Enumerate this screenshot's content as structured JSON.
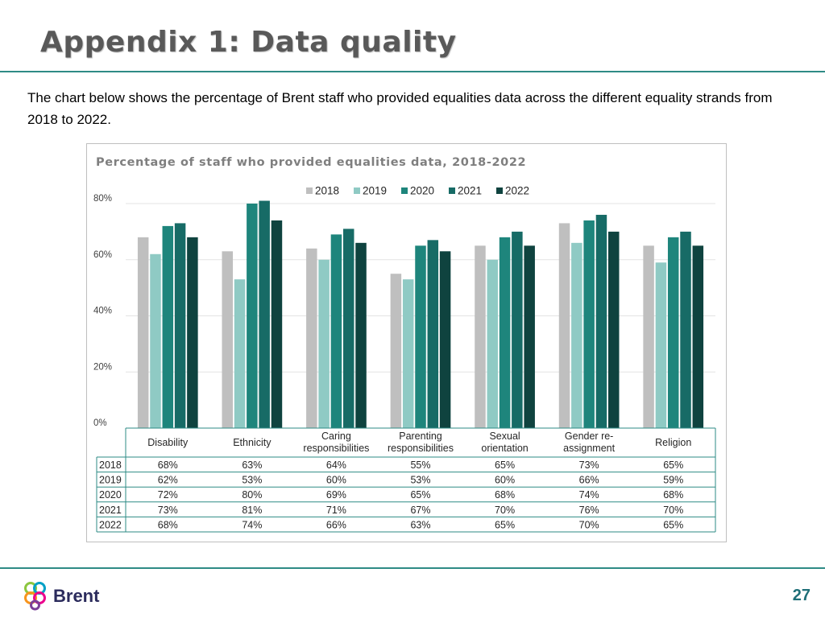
{
  "header": {
    "title": "Appendix 1: Data quality"
  },
  "intro_text": "The chart below shows the percentage of Brent staff who provided equalities data across the different equality strands from 2018 to 2022.",
  "colors": {
    "accent_rule": "#2e8b85",
    "series": [
      "#bfbfbf",
      "#8fcac4",
      "#1e857c",
      "#176b66",
      "#0f433f"
    ]
  },
  "chart_data": {
    "type": "bar",
    "title": "Percentage of staff who provided equalities data, 2018-2022",
    "categories": [
      "Disability",
      "Ethnicity",
      "Caring responsibilities",
      "Parenting responsibilities",
      "Sexual orientation",
      "Gender re-assignment",
      "Religion"
    ],
    "category_lines": [
      [
        "Disability"
      ],
      [
        "Ethnicity"
      ],
      [
        "Caring",
        "responsibilities"
      ],
      [
        "Parenting",
        "responsibilities"
      ],
      [
        "Sexual",
        "orientation"
      ],
      [
        "Gender re-",
        "assignment"
      ],
      [
        "Religion"
      ]
    ],
    "series": [
      {
        "name": "2018",
        "values": [
          68,
          63,
          64,
          55,
          65,
          73,
          65
        ]
      },
      {
        "name": "2019",
        "values": [
          62,
          53,
          60,
          53,
          60,
          66,
          59
        ]
      },
      {
        "name": "2020",
        "values": [
          72,
          80,
          69,
          65,
          68,
          74,
          68
        ]
      },
      {
        "name": "2021",
        "values": [
          73,
          81,
          71,
          67,
          70,
          76,
          70
        ]
      },
      {
        "name": "2022",
        "values": [
          68,
          74,
          66,
          63,
          65,
          70,
          65
        ]
      }
    ],
    "table_labels": {
      "2018": [
        "68%",
        "63%",
        "64%",
        "55%",
        "65%",
        "73%",
        "65%"
      ],
      "2019": [
        "62%",
        "53%",
        "60%",
        "53%",
        "60%",
        "66%",
        "59%"
      ],
      "2020": [
        "72%",
        "80%",
        "69%",
        "65%",
        "68%",
        "74%",
        "68%"
      ],
      "2021": [
        "73%",
        "81%",
        "71%",
        "67%",
        "70%",
        "76%",
        "70%"
      ],
      "2022": [
        "68%",
        "74%",
        "66%",
        "63%",
        "65%",
        "70%",
        "65%"
      ]
    },
    "ylim": [
      0,
      80
    ],
    "yticks": [
      0,
      20,
      40,
      60,
      80
    ],
    "ytick_labels": [
      "0%",
      "20%",
      "40%",
      "60%",
      "80%"
    ],
    "grid": true,
    "legend_position": "top",
    "data_table": true
  },
  "footer": {
    "logo_text": "Brent",
    "page_number": "27"
  }
}
